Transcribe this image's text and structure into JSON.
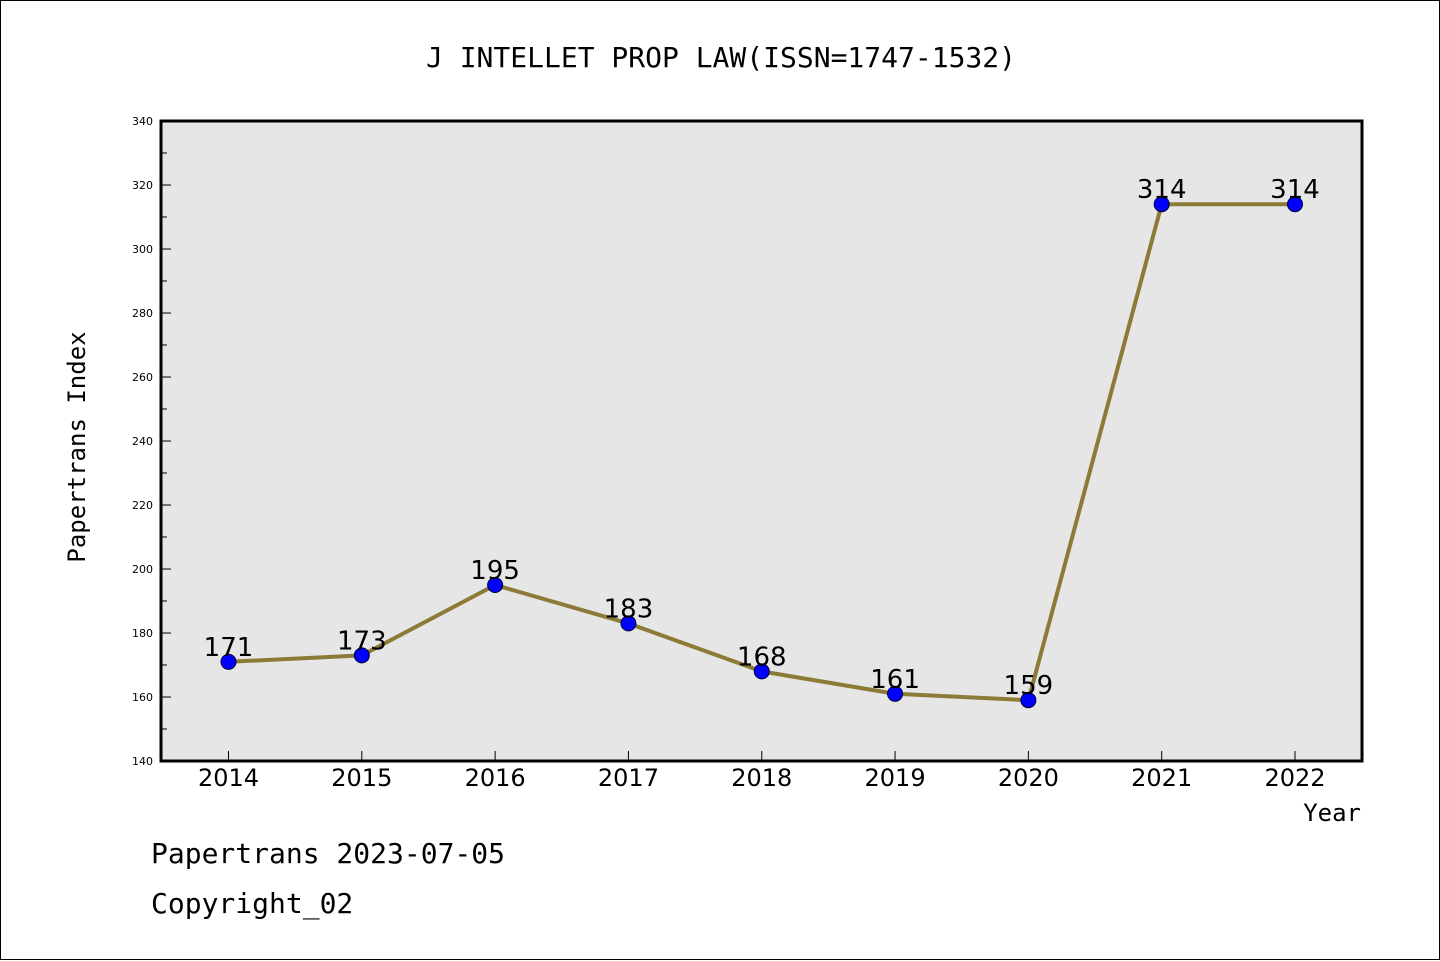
{
  "chart_data": {
    "type": "line",
    "title": "J INTELLET PROP LAW(ISSN=1747-1532)",
    "xlabel": "Year",
    "ylabel": "Papertrans Index",
    "categories": [
      "2014",
      "2015",
      "2016",
      "2017",
      "2018",
      "2019",
      "2020",
      "2021",
      "2022"
    ],
    "series": [
      {
        "values": [
          171,
          173,
          195,
          183,
          168,
          161,
          159,
          314,
          314
        ]
      }
    ],
    "data_labels": [
      "171",
      "173",
      "195",
      "183",
      "168",
      "161",
      "159",
      "314",
      "314"
    ],
    "ylim": [
      140,
      340
    ],
    "yticks": [
      "140",
      "160",
      "180",
      "200",
      "220",
      "240",
      "260",
      "280",
      "300",
      "320",
      "340"
    ],
    "grid": false,
    "line_color": "#8c7a37",
    "marker_color": "#0000ff",
    "plot_background": "#e6e6e6"
  },
  "footer": {
    "line1": "Papertrans 2023-07-05",
    "line2": "Copyright_02"
  }
}
